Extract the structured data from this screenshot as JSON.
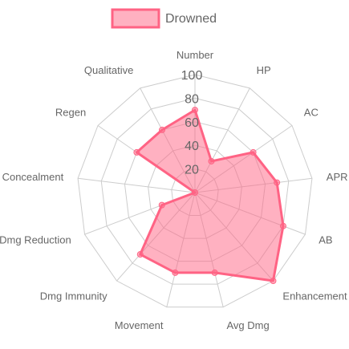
{
  "chart_data": {
    "type": "radar",
    "axes": [
      "Number",
      "HP",
      "AC",
      "APR",
      "AB",
      "Enhancement",
      "Avg Dmg",
      "Movement",
      "Dmg Immunity",
      "Dmg Reduction",
      "Concealment",
      "Regen",
      "Qualitative"
    ],
    "series": [
      {
        "name": "Drowned",
        "values": [
          70,
          30,
          60,
          70,
          80,
          100,
          70,
          70,
          70,
          30,
          0,
          60,
          60
        ],
        "fill": "rgba(255,99,132,0.5)",
        "stroke": "#ff6384"
      }
    ],
    "rlim": [
      0,
      100
    ],
    "ticks": [
      20,
      40,
      60,
      80,
      100
    ],
    "legend_position": "top",
    "grid": true,
    "grid_color": "#cccccc"
  }
}
